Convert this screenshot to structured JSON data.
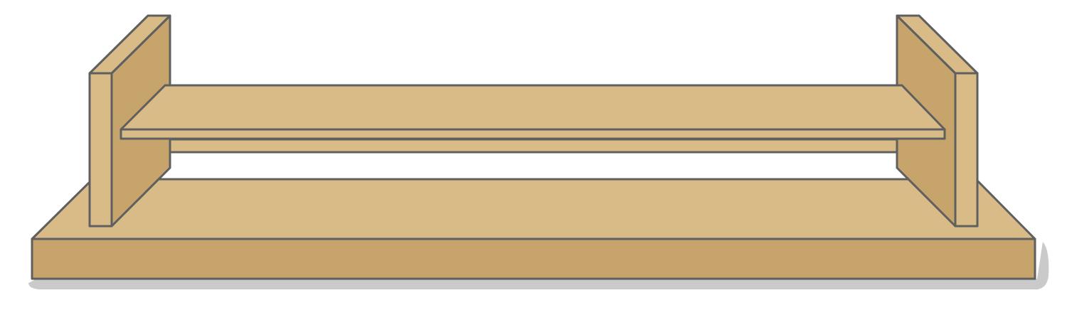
{
  "illustration": {
    "subject": "wooden-shelf-on-base",
    "colors": {
      "wood_light": "#D9BB87",
      "wood_dark": "#C6A46B",
      "outline": "#5F5F5F",
      "shadow": "#CACACA",
      "background": "#FFFFFF"
    }
  }
}
